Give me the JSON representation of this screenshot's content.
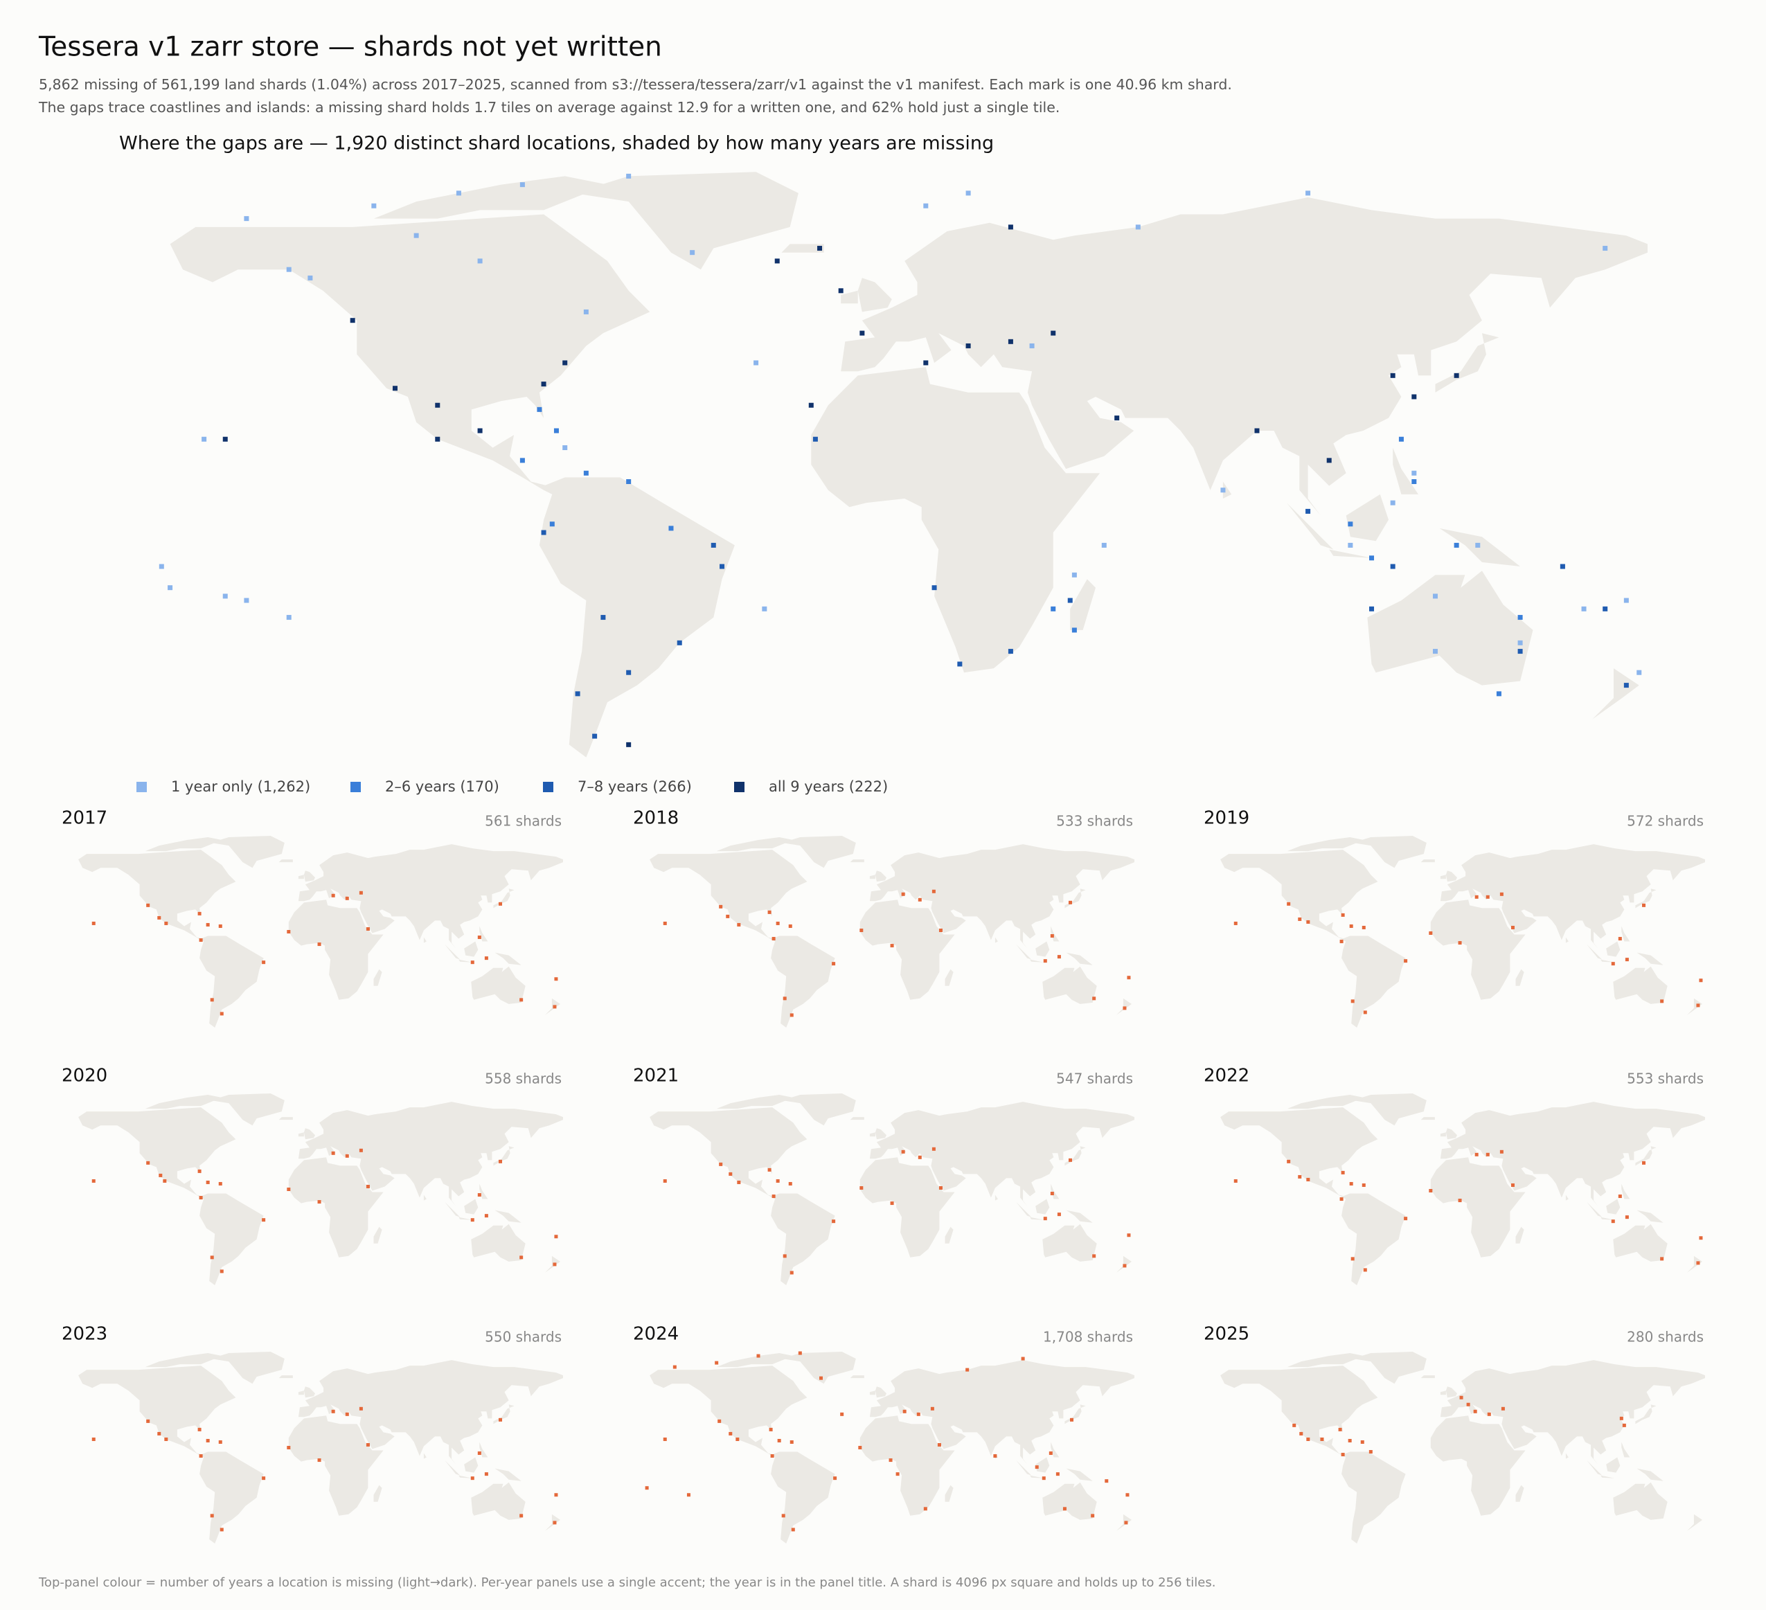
{
  "title": "Tessera v1 zarr store — shards not yet written",
  "subtitle": [
    "5,862 missing of 561,199 land shards (1.04%) across 2017–2025, scanned from s3://tessera/tessera/zarr/v1 against the v1 manifest. Each mark is one 40.96 km shard.",
    "The gaps trace coastlines and islands: a missing shard holds 1.7 tiles on average against 12.9 for a written one, and 62% hold just a single tile."
  ],
  "footnote": "Top-panel colour = number of years a location is missing (light→dark). Per-year panels use a single accent; the year is in the panel title. A shard is 4096 px square and holds up to 256 tiles.",
  "chart_data": [
    {
      "type": "map-scatter",
      "title": "Where the gaps are — 1,920 distinct shard locations, shaded by how many years are missing",
      "series": [
        {
          "name": "1 year only  (1,262)",
          "color": "#8ab4ec",
          "lon": [
            -150,
            -140,
            -120,
            -100,
            -85,
            -60,
            -45,
            -70,
            -168,
            -155,
            -170,
            -150,
            -140,
            10,
            20,
            100,
            120,
            140,
            160,
            175,
            -30,
            -75,
            80,
            130,
            60,
            170,
            130,
            45,
            52,
            35,
            165,
            -110,
            -95,
            -135,
            150,
            110,
            125,
            178,
            -160,
            -28
          ],
          "lat": [
            72,
            60,
            75,
            78,
            80,
            82,
            64,
            50,
            -15,
            -17,
            -10,
            -18,
            -22,
            75,
            78,
            78,
            5,
            -5,
            -10,
            -18,
            38,
            18,
            8,
            -30,
            70,
            65,
            -17,
            -12,
            -5,
            42,
            -20,
            68,
            62,
            58,
            -28,
            -5,
            12,
            -35,
            20,
            -20
          ]
        },
        {
          "name": "2–6 years  (170)",
          "color": "#3a7fd9",
          "lon": [
            -81,
            -77,
            -70,
            -60,
            -50,
            110,
            125,
            135,
            150,
            115,
            -78,
            -85,
            40,
            45,
            122,
            145
          ],
          "lat": [
            27,
            22,
            12,
            10,
            -1,
            0,
            10,
            -5,
            -22,
            -8,
            0,
            15,
            -20,
            -25,
            20,
            -40
          ]
        },
        {
          "name": "7–8 years  (266)",
          "color": "#1f5bb0",
          "lon": [
            -80,
            -66,
            -38,
            -48,
            -72,
            -68,
            -16,
            12,
            30,
            44,
            115,
            150,
            160,
            175,
            170,
            -60,
            100,
            120,
            18,
            -40
          ],
          "lat": [
            -2,
            -22,
            -10,
            -28,
            -40,
            -50,
            20,
            -15,
            -30,
            -18,
            -20,
            -30,
            -10,
            -38,
            -20,
            -35,
            3,
            -10,
            -33,
            -5
          ]
        },
        {
          "name": "all 9 years  (222)",
          "color": "#10326b",
          "lon": [
            -125,
            -115,
            -105,
            -95,
            -80,
            -75,
            -155,
            -10,
            -15,
            -25,
            -5,
            10,
            20,
            30,
            40,
            55,
            120,
            125,
            135,
            105,
            30,
            -17,
            -60,
            -105,
            88
          ],
          "lat": [
            48,
            32,
            20,
            22,
            33,
            38,
            20,
            55,
            65,
            62,
            45,
            38,
            42,
            43,
            45,
            25,
            35,
            30,
            35,
            15,
            70,
            28,
            -52,
            28,
            22
          ]
        }
      ]
    },
    {
      "type": "map",
      "title": "2017",
      "annotation": "561 shards",
      "color": "#e4683a",
      "lon": [
        -105,
        -110,
        -118,
        -81,
        -75,
        -66,
        -80,
        -35,
        -72,
        -65,
        15,
        25,
        35,
        -17,
        5,
        40,
        120,
        115,
        125,
        135,
        150,
        175,
        -157,
        174
      ],
      "lat": [
        20,
        24,
        33,
        27,
        19,
        18,
        8,
        -8,
        -35,
        -45,
        40,
        38,
        42,
        14,
        5,
        16,
        10,
        -8,
        -5,
        34,
        -35,
        -20,
        20,
        -40
      ]
    },
    {
      "type": "map",
      "title": "2018",
      "annotation": "533 shards",
      "color": "#e4683a",
      "lon": [
        -104,
        -112,
        -117,
        -82,
        -76,
        -67,
        -79,
        -36,
        -71,
        -66,
        14,
        26,
        36,
        -16,
        6,
        41,
        121,
        116,
        126,
        134,
        151,
        176,
        -157,
        173
      ],
      "lat": [
        19,
        25,
        32,
        28,
        20,
        18,
        9,
        -9,
        -34,
        -46,
        41,
        37,
        43,
        15,
        4,
        15,
        11,
        -7,
        -4,
        35,
        -34,
        -19,
        20,
        -41
      ]
    },
    {
      "type": "map",
      "title": "2019",
      "annotation": "572 shards",
      "color": "#e4683a",
      "lon": [
        -105,
        -111,
        -119,
        -80,
        -74,
        -65,
        -81,
        -35,
        -73,
        -64,
        16,
        24,
        34,
        -17,
        4,
        42,
        119,
        114,
        124,
        136,
        149,
        177,
        -157,
        175
      ],
      "lat": [
        21,
        23,
        34,
        26,
        18,
        17,
        7,
        -7,
        -36,
        -44,
        39,
        39,
        41,
        13,
        6,
        17,
        9,
        -9,
        -6,
        33,
        -36,
        -21,
        20,
        -39
      ]
    },
    {
      "type": "map",
      "title": "2020",
      "annotation": "558 shards",
      "color": "#e4683a",
      "lon": [
        -106,
        -109,
        -118,
        -81,
        -75,
        -66,
        -80,
        -35,
        -72,
        -65,
        15,
        25,
        35,
        -17,
        5,
        40,
        120,
        115,
        125,
        135,
        150,
        175,
        -157,
        174
      ],
      "lat": [
        20,
        24,
        33,
        27,
        19,
        18,
        8,
        -8,
        -35,
        -45,
        40,
        38,
        42,
        14,
        5,
        16,
        10,
        -8,
        -5,
        34,
        -35,
        -20,
        20,
        -40
      ]
    },
    {
      "type": "map",
      "title": "2021",
      "annotation": "547 shards",
      "color": "#e4683a",
      "lon": [
        -104,
        -110,
        -117,
        -82,
        -76,
        -67,
        -79,
        -36,
        -71,
        -66,
        14,
        26,
        36,
        -16,
        6,
        41,
        121,
        116,
        126,
        134,
        151,
        176,
        -157,
        173
      ],
      "lat": [
        19,
        25,
        32,
        28,
        20,
        18,
        9,
        -9,
        -34,
        -46,
        41,
        37,
        43,
        15,
        4,
        15,
        11,
        -7,
        -4,
        35,
        -34,
        -19,
        20,
        -41
      ]
    },
    {
      "type": "map",
      "title": "2022",
      "annotation": "553 shards",
      "color": "#e4683a",
      "lon": [
        -105,
        -111,
        -119,
        -80,
        -74,
        -65,
        -81,
        -35,
        -73,
        -64,
        16,
        24,
        34,
        -17,
        4,
        42,
        119,
        114,
        124,
        136,
        149,
        177,
        -157,
        175
      ],
      "lat": [
        21,
        23,
        34,
        26,
        18,
        17,
        7,
        -7,
        -36,
        -44,
        39,
        39,
        41,
        13,
        6,
        17,
        9,
        -9,
        -6,
        33,
        -36,
        -21,
        20,
        -39
      ]
    },
    {
      "type": "map",
      "title": "2023",
      "annotation": "550 shards",
      "color": "#e4683a",
      "lon": [
        -105,
        -110,
        -118,
        -81,
        -75,
        -66,
        -80,
        -35,
        -72,
        -65,
        15,
        25,
        35,
        -17,
        5,
        40,
        120,
        115,
        125,
        135,
        150,
        175,
        -157,
        174
      ],
      "lat": [
        20,
        24,
        33,
        27,
        19,
        18,
        8,
        -8,
        -35,
        -45,
        40,
        38,
        42,
        14,
        5,
        16,
        10,
        -8,
        -5,
        34,
        -35,
        -20,
        20,
        -40
      ]
    },
    {
      "type": "map",
      "title": "2024",
      "annotation": "1,708 shards",
      "color": "#e4683a",
      "lon": [
        -105,
        -110,
        -118,
        -81,
        -75,
        -66,
        -80,
        -35,
        -72,
        -65,
        15,
        25,
        35,
        -17,
        5,
        40,
        120,
        115,
        125,
        135,
        150,
        175,
        -157,
        174,
        -150,
        -120,
        -90,
        -60,
        -170,
        -140,
        100,
        160,
        -30,
        60,
        80,
        110,
        130,
        -45,
        10,
        30
      ],
      "lat": [
        20,
        24,
        33,
        27,
        19,
        18,
        8,
        -8,
        -35,
        -45,
        40,
        38,
        42,
        14,
        5,
        16,
        10,
        -8,
        -5,
        34,
        -35,
        -20,
        20,
        -40,
        72,
        75,
        80,
        82,
        -15,
        -20,
        78,
        -10,
        38,
        70,
        8,
        0,
        -30,
        64,
        -5,
        -30
      ]
    },
    {
      "type": "map",
      "title": "2025",
      "annotation": "280 shards",
      "color": "#e4683a",
      "lon": [
        -105,
        -110,
        -95,
        -82,
        -75,
        -66,
        -80,
        -60,
        10,
        15,
        25,
        35,
        5,
        120,
        122,
        -115
      ],
      "lat": [
        20,
        24,
        20,
        27,
        19,
        18,
        9,
        11,
        45,
        40,
        38,
        42,
        50,
        35,
        30,
        30
      ]
    }
  ]
}
